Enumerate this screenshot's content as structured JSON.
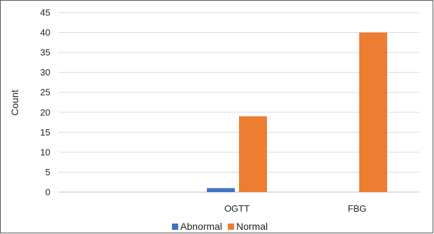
{
  "chart_data": {
    "type": "bar",
    "categories": [
      "",
      "OGTT",
      "FBG"
    ],
    "series": [
      {
        "name": "Abnormal",
        "values": [
          0,
          1,
          0
        ],
        "color": "#4472C4"
      },
      {
        "name": "Normal",
        "values": [
          0,
          19,
          40
        ],
        "color": "#ED7D31"
      }
    ],
    "ylabel": "Count",
    "xlabel": "",
    "ylim": [
      0,
      45
    ],
    "yticks": [
      0,
      5,
      10,
      15,
      20,
      25,
      30,
      35,
      40,
      45
    ],
    "grid": true,
    "legend_position": "bottom"
  }
}
